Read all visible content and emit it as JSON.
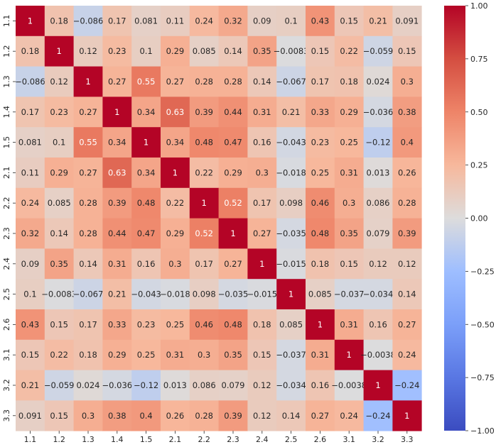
{
  "chart_data": {
    "type": "heatmap",
    "x_labels": [
      "1.1",
      "1.2",
      "1.3",
      "1.4",
      "1.5",
      "2.1",
      "2.2",
      "2.3",
      "2.4",
      "2.5",
      "2.6",
      "3.1",
      "3.2",
      "3.3"
    ],
    "y_labels": [
      "1.1",
      "1.2",
      "1.3",
      "1.4",
      "1.5",
      "2.1",
      "2.2",
      "2.3",
      "2.4",
      "2.5",
      "2.6",
      "3.1",
      "3.2",
      "3.3"
    ],
    "values": [
      [
        1,
        0.18,
        -0.086,
        0.17,
        0.081,
        0.11,
        0.24,
        0.32,
        0.09,
        0.1,
        0.43,
        0.15,
        0.21,
        0.091
      ],
      [
        0.18,
        1,
        0.12,
        0.23,
        0.1,
        0.29,
        0.085,
        0.14,
        0.35,
        -0.0083,
        0.15,
        0.22,
        -0.059,
        0.15
      ],
      [
        -0.086,
        0.12,
        1,
        0.27,
        0.55,
        0.27,
        0.28,
        0.28,
        0.14,
        -0.067,
        0.17,
        0.18,
        0.024,
        0.3
      ],
      [
        0.17,
        0.23,
        0.27,
        1,
        0.34,
        0.63,
        0.39,
        0.44,
        0.31,
        0.21,
        0.33,
        0.29,
        -0.036,
        0.38
      ],
      [
        0.081,
        0.1,
        0.55,
        0.34,
        1,
        0.34,
        0.48,
        0.47,
        0.16,
        -0.043,
        0.23,
        0.25,
        -0.12,
        0.4
      ],
      [
        0.11,
        0.29,
        0.27,
        0.63,
        0.34,
        1,
        0.22,
        0.29,
        0.3,
        -0.018,
        0.25,
        0.31,
        0.013,
        0.26
      ],
      [
        0.24,
        0.085,
        0.28,
        0.39,
        0.48,
        0.22,
        1,
        0.52,
        0.17,
        0.098,
        0.46,
        0.3,
        0.086,
        0.28
      ],
      [
        0.32,
        0.14,
        0.28,
        0.44,
        0.47,
        0.29,
        0.52,
        1,
        0.27,
        -0.035,
        0.48,
        0.35,
        0.079,
        0.39
      ],
      [
        0.09,
        0.35,
        0.14,
        0.31,
        0.16,
        0.3,
        0.17,
        0.27,
        1,
        -0.015,
        0.18,
        0.15,
        0.12,
        0.12
      ],
      [
        0.1,
        -0.0083,
        -0.067,
        0.21,
        -0.043,
        -0.018,
        0.098,
        -0.035,
        -0.015,
        1,
        0.085,
        -0.037,
        -0.034,
        0.14
      ],
      [
        0.43,
        0.15,
        0.17,
        0.33,
        0.23,
        0.25,
        0.46,
        0.48,
        0.18,
        0.085,
        1,
        0.31,
        0.16,
        0.27
      ],
      [
        0.15,
        0.22,
        0.18,
        0.29,
        0.25,
        0.31,
        0.3,
        0.35,
        0.15,
        -0.037,
        0.31,
        1,
        -0.0038,
        0.24
      ],
      [
        0.21,
        -0.059,
        0.024,
        -0.036,
        -0.12,
        0.013,
        0.086,
        0.079,
        0.12,
        -0.034,
        0.16,
        -0.0038,
        1,
        -0.24
      ],
      [
        0.091,
        0.15,
        0.3,
        0.38,
        0.4,
        0.26,
        0.28,
        0.39,
        0.12,
        0.14,
        0.27,
        0.24,
        -0.24,
        1
      ]
    ],
    "value_range": [
      -1,
      1
    ],
    "colormap": "coolwarm",
    "colorbar_ticks": [
      "1.00",
      "0.75",
      "0.50",
      "0.25",
      "0.00",
      "−0.25",
      "−0.50",
      "−0.75",
      "−1.00"
    ],
    "colorbar_tick_values": [
      1,
      0.75,
      0.5,
      0.25,
      0,
      -0.25,
      -0.5,
      -0.75,
      -1
    ],
    "annotations": true,
    "title": "",
    "xlabel": "",
    "ylabel": ""
  }
}
